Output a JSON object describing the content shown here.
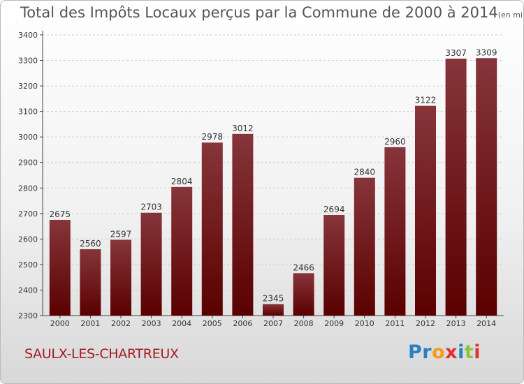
{
  "title": "Total des Impôts Locaux perçus par la Commune de 2000 à 2014",
  "unit_label": "(en milliers d'€)",
  "commune": "SAULX-LES-CHARTREUX",
  "logo": {
    "parts": [
      "Pr",
      "o",
      "x",
      "i",
      "t",
      "i"
    ]
  },
  "colors": {
    "bar_top": "#86353a",
    "bar_bottom": "#5a0000",
    "grid": "#d0d0d0",
    "axis": "#444444"
  },
  "chart_data": {
    "type": "bar",
    "title": "Total des Impôts Locaux perçus par la Commune de 2000 à 2014",
    "xlabel": "",
    "ylabel": "",
    "categories": [
      "2000",
      "2001",
      "2002",
      "2003",
      "2004",
      "2005",
      "2006",
      "2007",
      "2008",
      "2009",
      "2010",
      "2011",
      "2012",
      "2013",
      "2014"
    ],
    "values": [
      2675,
      2560,
      2597,
      2703,
      2804,
      2978,
      3012,
      2345,
      2466,
      2694,
      2840,
      2960,
      3122,
      3307,
      3309
    ],
    "value_labels": [
      "2675",
      "2560",
      "2597",
      "2703",
      "2804",
      "2978",
      "3012",
      "2345",
      "2466",
      "2694",
      "2840",
      "2960",
      "3122",
      "3307",
      "3309"
    ],
    "ylim": [
      2300,
      3400
    ],
    "yticks": [
      "2300",
      "2400",
      "2500",
      "2600",
      "2700",
      "2800",
      "2900",
      "3000",
      "3100",
      "3200",
      "3300",
      "3400"
    ],
    "grid": true
  }
}
